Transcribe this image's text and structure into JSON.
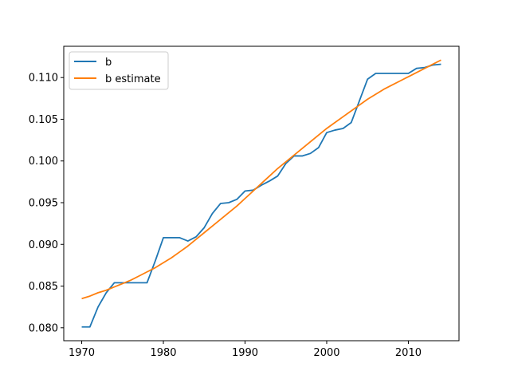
{
  "chart_data": {
    "type": "line",
    "title": "",
    "xlabel": "",
    "ylabel": "",
    "xlim": [
      1967.8,
      2016.2
    ],
    "ylim": [
      0.07845,
      0.11375
    ],
    "x_ticks": [
      1970,
      1980,
      1990,
      2000,
      2010
    ],
    "x_tick_labels": [
      "1970",
      "1980",
      "1990",
      "2000",
      "2010"
    ],
    "y_ticks": [
      0.08,
      0.085,
      0.09,
      0.095,
      0.1,
      0.105,
      0.11
    ],
    "y_tick_labels": [
      "0.080",
      "0.085",
      "0.090",
      "0.095",
      "0.100",
      "0.105",
      "0.110"
    ],
    "grid": false,
    "legend": {
      "location": "upper-left"
    },
    "series": [
      {
        "name": "b",
        "color": "#1f77b4",
        "x": [
          1970,
          1971,
          1972,
          1973,
          1974,
          1975,
          1976,
          1977,
          1978,
          1979,
          1980,
          1981,
          1982,
          1983,
          1984,
          1985,
          1986,
          1987,
          1988,
          1989,
          1990,
          1991,
          1992,
          1993,
          1994,
          1995,
          1996,
          1997,
          1998,
          1999,
          2000,
          2001,
          2002,
          2003,
          2004,
          2005,
          2006,
          2007,
          2008,
          2009,
          2010,
          2011,
          2012,
          2013,
          2014
        ],
        "y": [
          0.0801,
          0.0801,
          0.0825,
          0.0842,
          0.0854,
          0.0854,
          0.0854,
          0.0854,
          0.0854,
          0.088,
          0.0908,
          0.0908,
          0.0908,
          0.0904,
          0.0909,
          0.092,
          0.0937,
          0.0949,
          0.095,
          0.0954,
          0.0964,
          0.0965,
          0.0971,
          0.0976,
          0.0982,
          0.0997,
          0.1006,
          0.1006,
          0.1009,
          0.1016,
          0.1034,
          0.1037,
          0.1039,
          0.1046,
          0.1072,
          0.1098,
          0.1105,
          0.1105,
          0.1105,
          0.1105,
          0.1105,
          0.1111,
          0.1112,
          0.1115,
          0.1116
        ]
      },
      {
        "name": "b estimate",
        "color": "#ff7f0e",
        "x": [
          1970,
          1971,
          1972,
          1973,
          1974,
          1975,
          1976,
          1977,
          1978,
          1979,
          1980,
          1981,
          1982,
          1983,
          1984,
          1985,
          1986,
          1987,
          1988,
          1989,
          1990,
          1991,
          1992,
          1993,
          1994,
          1995,
          1996,
          1997,
          1998,
          1999,
          2000,
          2001,
          2002,
          2003,
          2004,
          2005,
          2006,
          2007,
          2008,
          2009,
          2010,
          2011,
          2012,
          2013,
          2014
        ],
        "y": [
          0.0835,
          0.0838,
          0.0842,
          0.0845,
          0.0849,
          0.0853,
          0.0857,
          0.0862,
          0.0867,
          0.0872,
          0.0878,
          0.0884,
          0.0891,
          0.0898,
          0.0906,
          0.0914,
          0.0922,
          0.093,
          0.0938,
          0.0946,
          0.0955,
          0.0964,
          0.0973,
          0.0982,
          0.0991,
          0.0999,
          0.1007,
          0.1015,
          0.1023,
          0.1031,
          0.1039,
          0.1046,
          0.1053,
          0.106,
          0.1067,
          0.1074,
          0.108,
          0.1086,
          0.1091,
          0.1096,
          0.1101,
          0.1106,
          0.1111,
          0.1116,
          0.1121
        ]
      }
    ]
  }
}
